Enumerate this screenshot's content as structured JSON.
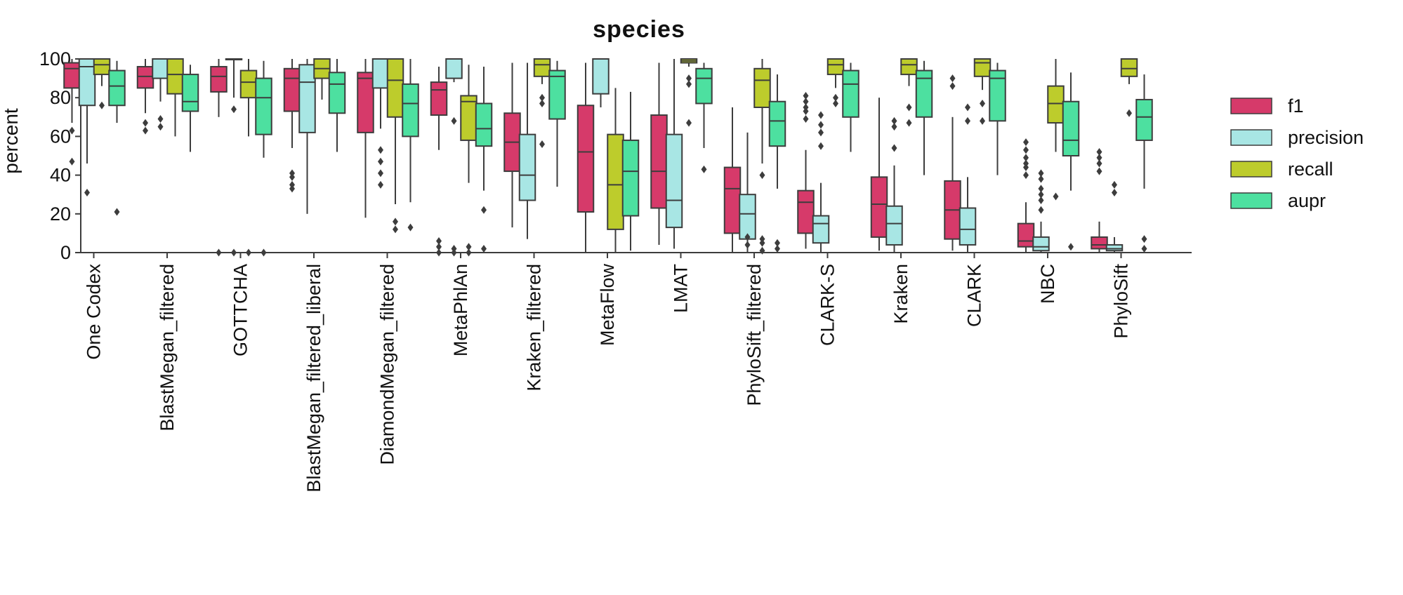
{
  "chart_data": {
    "type": "box",
    "title": "species",
    "ylabel": "percent",
    "xlabel": "",
    "ylim": [
      0,
      100
    ],
    "yticks": [
      0,
      20,
      40,
      60,
      80,
      100
    ],
    "grid": false,
    "legend_position": "right",
    "categories": [
      "One Codex",
      "BlastMegan_filtered",
      "GOTTCHA",
      "BlastMegan_filtered_liberal",
      "DiamondMegan_filtered",
      "MetaPhlAn",
      "Kraken_filtered",
      "MetaFlow",
      "LMAT",
      "PhyloSift_filtered",
      "CLARK-S",
      "Kraken",
      "CLARK",
      "NBC",
      "PhyloSift"
    ],
    "series": [
      {
        "name": "f1",
        "color": "#d63a6a",
        "boxes": [
          {
            "min": 67,
            "q1": 85,
            "median": 95,
            "q3": 98,
            "max": 100,
            "outliers": [
              63,
              47
            ]
          },
          {
            "min": 72,
            "q1": 85,
            "median": 91,
            "q3": 96,
            "max": 100,
            "outliers": [
              67,
              63
            ]
          },
          {
            "min": 70,
            "q1": 83,
            "median": 91,
            "q3": 96,
            "max": 100,
            "outliers": [
              0
            ]
          },
          {
            "min": 54,
            "q1": 73,
            "median": 90,
            "q3": 95,
            "max": 100,
            "outliers": [
              41,
              39,
              35,
              33
            ]
          },
          {
            "min": 18,
            "q1": 62,
            "median": 90,
            "q3": 93,
            "max": 100,
            "outliers": []
          },
          {
            "min": 53,
            "q1": 71,
            "median": 84,
            "q3": 88,
            "max": 96,
            "outliers": [
              6,
              3,
              0
            ]
          },
          {
            "min": 13,
            "q1": 42,
            "median": 57,
            "q3": 72,
            "max": 98,
            "outliers": []
          },
          {
            "min": 0,
            "q1": 21,
            "median": 52,
            "q3": 76,
            "max": 98,
            "outliers": []
          },
          {
            "min": 4,
            "q1": 23,
            "median": 42,
            "q3": 71,
            "max": 98,
            "outliers": []
          },
          {
            "min": 0,
            "q1": 10,
            "median": 33,
            "q3": 44,
            "max": 75,
            "outliers": []
          },
          {
            "min": 2,
            "q1": 10,
            "median": 26,
            "q3": 32,
            "max": 53,
            "outliers": [
              81,
              78,
              75,
              73,
              69
            ]
          },
          {
            "min": 1,
            "q1": 8,
            "median": 25,
            "q3": 39,
            "max": 80,
            "outliers": []
          },
          {
            "min": 1,
            "q1": 7,
            "median": 22,
            "q3": 37,
            "max": 70,
            "outliers": [
              90,
              86
            ]
          },
          {
            "min": 0,
            "q1": 3,
            "median": 6,
            "q3": 15,
            "max": 26,
            "outliers": [
              57,
              53,
              49,
              46,
              44,
              40
            ]
          },
          {
            "min": 0,
            "q1": 2,
            "median": 4,
            "q3": 8,
            "max": 16,
            "outliers": [
              52,
              49,
              46,
              42
            ]
          }
        ]
      },
      {
        "name": "precision",
        "color": "#a8e6e4",
        "boxes": [
          {
            "min": 46,
            "q1": 76,
            "median": 96,
            "q3": 100,
            "max": 100,
            "outliers": [
              31
            ]
          },
          {
            "min": 78,
            "q1": 90,
            "median": 100,
            "q3": 100,
            "max": 100,
            "outliers": [
              69,
              65
            ]
          },
          {
            "min": 80,
            "q1": 100,
            "median": 100,
            "q3": 100,
            "max": 100,
            "outliers": [
              74,
              0
            ]
          },
          {
            "min": 20,
            "q1": 62,
            "median": 88,
            "q3": 97,
            "max": 100,
            "outliers": []
          },
          {
            "min": 64,
            "q1": 85,
            "median": 100,
            "q3": 100,
            "max": 100,
            "outliers": [
              53,
              47,
              41,
              35
            ]
          },
          {
            "min": 88,
            "q1": 90,
            "median": 100,
            "q3": 100,
            "max": 100,
            "outliers": [
              68,
              2,
              0
            ]
          },
          {
            "min": 7,
            "q1": 27,
            "median": 40,
            "q3": 61,
            "max": 98,
            "outliers": []
          },
          {
            "min": 75,
            "q1": 82,
            "median": 100,
            "q3": 100,
            "max": 100,
            "outliers": []
          },
          {
            "min": 2,
            "q1": 13,
            "median": 27,
            "q3": 61,
            "max": 100,
            "outliers": []
          },
          {
            "min": 0,
            "q1": 7,
            "median": 20,
            "q3": 30,
            "max": 62,
            "outliers": [
              8,
              4
            ]
          },
          {
            "min": 0,
            "q1": 5,
            "median": 15,
            "q3": 19,
            "max": 36,
            "outliers": [
              71,
              66,
              62,
              55
            ]
          },
          {
            "min": 0,
            "q1": 4,
            "median": 15,
            "q3": 24,
            "max": 45,
            "outliers": [
              68,
              65,
              54
            ]
          },
          {
            "min": 0,
            "q1": 4,
            "median": 12,
            "q3": 23,
            "max": 39,
            "outliers": [
              75,
              68
            ]
          },
          {
            "min": 0,
            "q1": 1,
            "median": 3,
            "q3": 8,
            "max": 16,
            "outliers": [
              41,
              38,
              33,
              30,
              27,
              22
            ]
          },
          {
            "min": 0,
            "q1": 1,
            "median": 2,
            "q3": 4,
            "max": 8,
            "outliers": [
              35,
              31
            ]
          }
        ]
      },
      {
        "name": "recall",
        "color": "#bdcc2c",
        "boxes": [
          {
            "min": 86,
            "q1": 92,
            "median": 97,
            "q3": 100,
            "max": 100,
            "outliers": [
              76
            ]
          },
          {
            "min": 60,
            "q1": 82,
            "median": 92,
            "q3": 100,
            "max": 100,
            "outliers": []
          },
          {
            "min": 60,
            "q1": 80,
            "median": 88,
            "q3": 94,
            "max": 100,
            "outliers": [
              0
            ]
          },
          {
            "min": 79,
            "q1": 90,
            "median": 95,
            "q3": 100,
            "max": 100,
            "outliers": []
          },
          {
            "min": 25,
            "q1": 70,
            "median": 89,
            "q3": 100,
            "max": 100,
            "outliers": [
              16,
              12
            ]
          },
          {
            "min": 36,
            "q1": 58,
            "median": 78,
            "q3": 81,
            "max": 97,
            "outliers": [
              3,
              0
            ]
          },
          {
            "min": 87,
            "q1": 91,
            "median": 97,
            "q3": 100,
            "max": 100,
            "outliers": [
              80,
              77,
              56
            ]
          },
          {
            "min": 0,
            "q1": 12,
            "median": 35,
            "q3": 61,
            "max": 85,
            "outliers": []
          },
          {
            "min": 96,
            "q1": 98,
            "median": 99,
            "q3": 100,
            "max": 100,
            "outliers": [
              90,
              87,
              67
            ]
          },
          {
            "min": 46,
            "q1": 75,
            "median": 89,
            "q3": 95,
            "max": 100,
            "outliers": [
              40,
              7,
              5,
              1
            ]
          },
          {
            "min": 85,
            "q1": 92,
            "median": 97,
            "q3": 100,
            "max": 100,
            "outliers": [
              80,
              77
            ]
          },
          {
            "min": 86,
            "q1": 92,
            "median": 97,
            "q3": 100,
            "max": 100,
            "outliers": [
              75,
              67
            ]
          },
          {
            "min": 84,
            "q1": 91,
            "median": 98,
            "q3": 100,
            "max": 100,
            "outliers": [
              77,
              68
            ]
          },
          {
            "min": 52,
            "q1": 67,
            "median": 77,
            "q3": 86,
            "max": 100,
            "outliers": [
              29
            ]
          },
          {
            "min": 87,
            "q1": 91,
            "median": 95,
            "q3": 100,
            "max": 100,
            "outliers": [
              72
            ]
          }
        ]
      },
      {
        "name": "aupr",
        "color": "#4de0a0",
        "boxes": [
          {
            "min": 67,
            "q1": 76,
            "median": 86,
            "q3": 94,
            "max": 99,
            "outliers": [
              21
            ]
          },
          {
            "min": 52,
            "q1": 73,
            "median": 78,
            "q3": 92,
            "max": 97,
            "outliers": []
          },
          {
            "min": 49,
            "q1": 61,
            "median": 80,
            "q3": 90,
            "max": 99,
            "outliers": [
              0
            ]
          },
          {
            "min": 52,
            "q1": 72,
            "median": 87,
            "q3": 93,
            "max": 100,
            "outliers": []
          },
          {
            "min": 26,
            "q1": 60,
            "median": 77,
            "q3": 87,
            "max": 100,
            "outliers": [
              13
            ]
          },
          {
            "min": 32,
            "q1": 55,
            "median": 64,
            "q3": 77,
            "max": 96,
            "outliers": [
              22,
              2
            ]
          },
          {
            "min": 34,
            "q1": 69,
            "median": 91,
            "q3": 94,
            "max": 99,
            "outliers": []
          },
          {
            "min": 1,
            "q1": 19,
            "median": 42,
            "q3": 58,
            "max": 83,
            "outliers": []
          },
          {
            "min": 54,
            "q1": 77,
            "median": 90,
            "q3": 95,
            "max": 98,
            "outliers": [
              43
            ]
          },
          {
            "min": 33,
            "q1": 55,
            "median": 68,
            "q3": 78,
            "max": 92,
            "outliers": [
              5,
              2
            ]
          },
          {
            "min": 52,
            "q1": 70,
            "median": 87,
            "q3": 94,
            "max": 98,
            "outliers": []
          },
          {
            "min": 40,
            "q1": 70,
            "median": 90,
            "q3": 94,
            "max": 99,
            "outliers": []
          },
          {
            "min": 40,
            "q1": 68,
            "median": 90,
            "q3": 94,
            "max": 98,
            "outliers": []
          },
          {
            "min": 32,
            "q1": 50,
            "median": 58,
            "q3": 78,
            "max": 93,
            "outliers": [
              3
            ]
          },
          {
            "min": 33,
            "q1": 58,
            "median": 70,
            "q3": 79,
            "max": 92,
            "outliers": [
              7,
              2
            ]
          }
        ]
      }
    ]
  }
}
